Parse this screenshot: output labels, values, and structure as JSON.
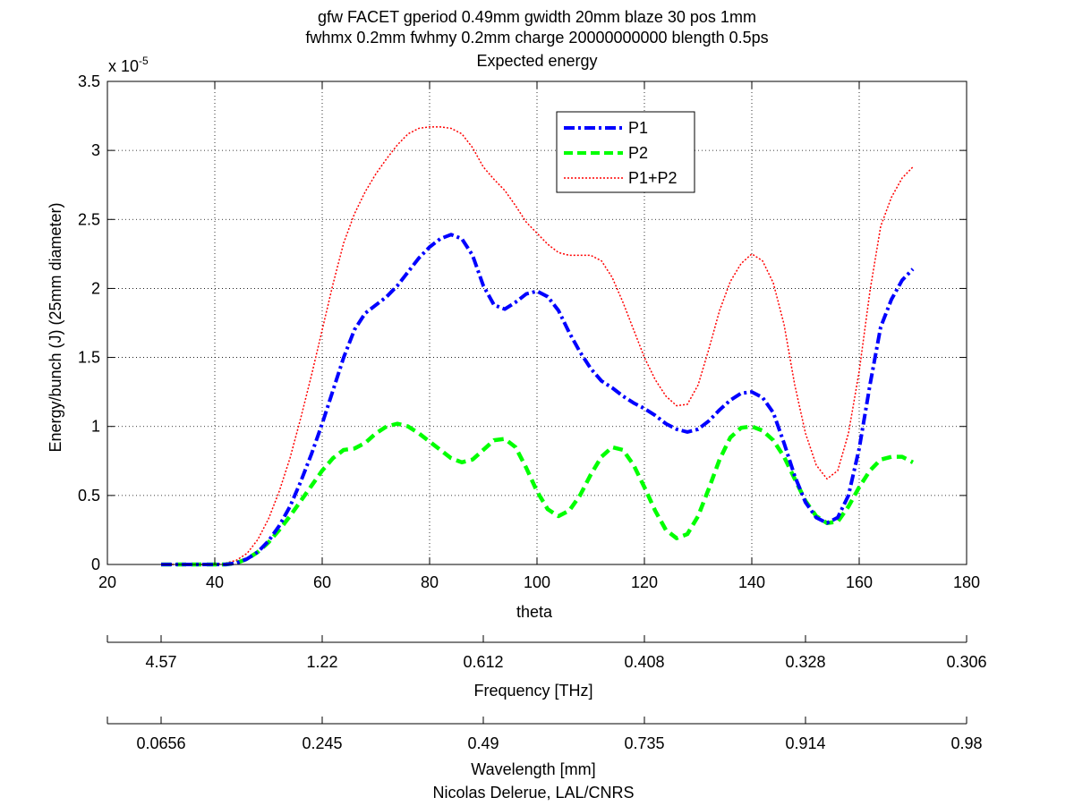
{
  "chart_data": {
    "type": "line",
    "title_lines": [
      "gfw FACET gperiod 0.49mm gwidth 20mm blaze 30 pos 1mm",
      "fwhmx 0.2mm fwhmy 0.2mm charge 20000000000 blength 0.5ps",
      "Expected energy"
    ],
    "xlabel": "theta",
    "ylabel": "Energy/bunch (J) (25mm diameter)",
    "xlim": [
      20,
      180
    ],
    "ylim": [
      0,
      3.5
    ],
    "y_exponent_label": "x 10",
    "y_exponent_power": "-5",
    "xticks": [
      20,
      40,
      60,
      80,
      100,
      120,
      140,
      160,
      180
    ],
    "xtick_labels": [
      "20",
      "40",
      "60",
      "80",
      "100",
      "120",
      "140",
      "160",
      "180"
    ],
    "yticks": [
      0,
      0.5,
      1,
      1.5,
      2,
      2.5,
      3,
      3.5
    ],
    "ytick_labels": [
      "0",
      "0.5",
      "1",
      "1.5",
      "2",
      "2.5",
      "3",
      "3.5"
    ],
    "grid": true,
    "legend_position": "top-center",
    "x": [
      30,
      35,
      40,
      42,
      44,
      46,
      48,
      50,
      52,
      54,
      56,
      58,
      60,
      62,
      64,
      66,
      68,
      70,
      72,
      74,
      76,
      78,
      80,
      82,
      84,
      86,
      88,
      90,
      92,
      94,
      96,
      98,
      100,
      102,
      104,
      106,
      108,
      110,
      112,
      114,
      116,
      118,
      120,
      122,
      124,
      126,
      128,
      130,
      132,
      134,
      136,
      138,
      140,
      142,
      144,
      146,
      148,
      150,
      152,
      154,
      156,
      158,
      160,
      162,
      164,
      166,
      168,
      170
    ],
    "series": [
      {
        "name": "P1",
        "color": "#0000ff",
        "style": "dash-dot",
        "values": [
          0,
          0,
          0,
          0,
          0.01,
          0.04,
          0.09,
          0.17,
          0.28,
          0.42,
          0.6,
          0.8,
          1.02,
          1.26,
          1.5,
          1.7,
          1.82,
          1.88,
          1.94,
          2.02,
          2.12,
          2.22,
          2.3,
          2.36,
          2.39,
          2.36,
          2.24,
          2.02,
          1.88,
          1.85,
          1.9,
          1.96,
          1.98,
          1.94,
          1.84,
          1.68,
          1.54,
          1.42,
          1.33,
          1.28,
          1.22,
          1.17,
          1.13,
          1.08,
          1.02,
          0.98,
          0.96,
          0.98,
          1.04,
          1.12,
          1.19,
          1.24,
          1.25,
          1.21,
          1.1,
          0.88,
          0.64,
          0.45,
          0.34,
          0.3,
          0.34,
          0.5,
          0.84,
          1.3,
          1.72,
          1.92,
          2.06,
          2.14
        ]
      },
      {
        "name": "P2",
        "color": "#00ff00",
        "style": "dashed",
        "values": [
          0,
          0,
          0,
          0,
          0.01,
          0.04,
          0.09,
          0.16,
          0.25,
          0.35,
          0.46,
          0.57,
          0.68,
          0.77,
          0.83,
          0.84,
          0.88,
          0.95,
          1.0,
          1.02,
          1.0,
          0.95,
          0.89,
          0.83,
          0.77,
          0.74,
          0.76,
          0.83,
          0.9,
          0.91,
          0.85,
          0.7,
          0.53,
          0.4,
          0.35,
          0.39,
          0.5,
          0.65,
          0.78,
          0.85,
          0.83,
          0.72,
          0.56,
          0.39,
          0.25,
          0.19,
          0.22,
          0.35,
          0.55,
          0.76,
          0.92,
          0.99,
          1.0,
          0.97,
          0.9,
          0.78,
          0.62,
          0.46,
          0.35,
          0.3,
          0.31,
          0.42,
          0.56,
          0.68,
          0.76,
          0.78,
          0.78,
          0.74
        ]
      },
      {
        "name": "P1+P2",
        "color": "#ff0000",
        "style": "dotted",
        "values": [
          0,
          0,
          0,
          0.01,
          0.03,
          0.08,
          0.18,
          0.33,
          0.53,
          0.77,
          1.06,
          1.37,
          1.7,
          2.03,
          2.33,
          2.54,
          2.7,
          2.83,
          2.94,
          3.04,
          3.12,
          3.16,
          3.17,
          3.17,
          3.16,
          3.12,
          3.02,
          2.88,
          2.79,
          2.71,
          2.6,
          2.48,
          2.4,
          2.32,
          2.26,
          2.24,
          2.24,
          2.24,
          2.2,
          2.08,
          1.9,
          1.7,
          1.5,
          1.34,
          1.22,
          1.15,
          1.16,
          1.3,
          1.56,
          1.84,
          2.05,
          2.18,
          2.25,
          2.2,
          2.04,
          1.74,
          1.3,
          0.95,
          0.72,
          0.62,
          0.68,
          0.95,
          1.4,
          1.98,
          2.45,
          2.66,
          2.8,
          2.88
        ]
      }
    ],
    "secondary_axes": [
      {
        "label": "Frequency [THz]",
        "tick_labels": [
          "4.57",
          "1.22",
          "0.612",
          "0.408",
          "0.328",
          "0.306"
        ],
        "tick_theta": [
          30,
          60,
          90,
          120,
          150,
          180
        ]
      },
      {
        "label": "Wavelength [mm]",
        "tick_labels": [
          "0.0656",
          "0.245",
          "0.49",
          "0.735",
          "0.914",
          "0.98"
        ],
        "tick_theta": [
          30,
          60,
          90,
          120,
          150,
          180
        ]
      }
    ],
    "footer": "Nicolas Delerue, LAL/CNRS"
  }
}
